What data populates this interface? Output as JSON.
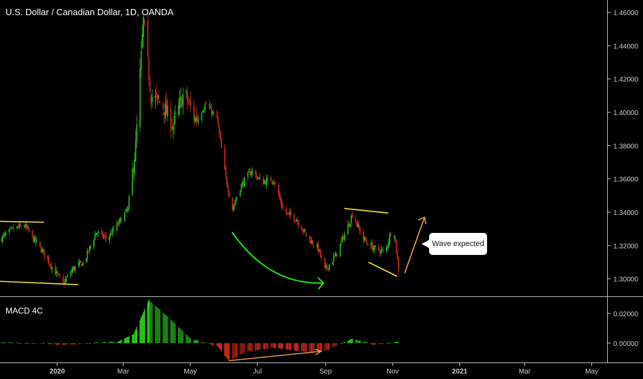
{
  "header": {
    "title": "U.S. Dollar / Canadian Dollar, 1D, OANDA"
  },
  "indicator": {
    "title": "MACD 4C"
  },
  "annotation": {
    "label": "Wave expected"
  },
  "colors": {
    "up": "#26c41a",
    "down": "#d32c1c",
    "trend": "#f2e63a",
    "curve": "#22dd22",
    "arrow": "#f0a040",
    "axis": "#cccccc"
  },
  "chart_data": [
    {
      "type": "candlestick",
      "title": "U.S. Dollar / Canadian Dollar, 1D, OANDA",
      "x_ticks": [
        "2020",
        "Mar",
        "May",
        "Jul",
        "Sep",
        "Nov",
        "2021",
        "Mar",
        "May"
      ],
      "y_ticks": [
        "1.46000",
        "1.44000",
        "1.42000",
        "1.40000",
        "1.38000",
        "1.36000",
        "1.34000",
        "1.32000",
        "1.30000"
      ],
      "ylim": [
        1.2895,
        1.4675
      ],
      "x_range": [
        "2019-11-10",
        "2021-05-15"
      ],
      "close_path": [
        [
          "2019-11-10",
          1.324
        ],
        [
          "2019-11-22",
          1.33
        ],
        [
          "2019-12-02",
          1.332
        ],
        [
          "2019-12-10",
          1.324
        ],
        [
          "2019-12-20",
          1.315
        ],
        [
          "2019-12-28",
          1.306
        ],
        [
          "2020-01-06",
          1.297
        ],
        [
          "2020-01-15",
          1.306
        ],
        [
          "2020-01-25",
          1.31
        ],
        [
          "2020-02-05",
          1.328
        ],
        [
          "2020-02-15",
          1.324
        ],
        [
          "2020-02-25",
          1.333
        ],
        [
          "2020-03-05",
          1.342
        ],
        [
          "2020-03-12",
          1.38
        ],
        [
          "2020-03-19",
          1.455
        ],
        [
          "2020-03-26",
          1.41
        ],
        [
          "2020-04-05",
          1.405
        ],
        [
          "2020-04-15",
          1.392
        ],
        [
          "2020-04-25",
          1.412
        ],
        [
          "2020-05-05",
          1.396
        ],
        [
          "2020-05-15",
          1.405
        ],
        [
          "2020-05-25",
          1.396
        ],
        [
          "2020-06-02",
          1.36
        ],
        [
          "2020-06-08",
          1.342
        ],
        [
          "2020-06-15",
          1.355
        ],
        [
          "2020-06-25",
          1.365
        ],
        [
          "2020-07-05",
          1.358
        ],
        [
          "2020-07-15",
          1.36
        ],
        [
          "2020-07-25",
          1.34
        ],
        [
          "2020-08-05",
          1.336
        ],
        [
          "2020-08-15",
          1.325
        ],
        [
          "2020-08-25",
          1.318
        ],
        [
          "2020-08-31",
          1.305
        ],
        [
          "2020-09-10",
          1.314
        ],
        [
          "2020-09-20",
          1.33
        ],
        [
          "2020-09-25",
          1.339
        ],
        [
          "2020-10-05",
          1.324
        ],
        [
          "2020-10-15",
          1.318
        ],
        [
          "2020-10-25",
          1.316
        ],
        [
          "2020-11-01",
          1.333
        ],
        [
          "2020-11-06",
          1.306
        ]
      ]
    },
    {
      "type": "bar",
      "title": "MACD 4C",
      "y_ticks": [
        "0.02000",
        "0.00000"
      ],
      "ylim": [
        -0.013,
        0.0315
      ],
      "values_path": [
        [
          "2019-11-10",
          0.0005
        ],
        [
          "2019-12-10",
          -0.0002
        ],
        [
          "2020-01-05",
          -0.0012
        ],
        [
          "2020-02-01",
          0.0
        ],
        [
          "2020-02-25",
          0.001
        ],
        [
          "2020-03-10",
          0.006
        ],
        [
          "2020-03-24",
          0.029
        ],
        [
          "2020-04-10",
          0.018
        ],
        [
          "2020-05-01",
          0.003
        ],
        [
          "2020-05-25",
          -0.002
        ],
        [
          "2020-06-05",
          -0.012
        ],
        [
          "2020-06-20",
          -0.006
        ],
        [
          "2020-07-15",
          -0.003
        ],
        [
          "2020-08-15",
          -0.006
        ],
        [
          "2020-09-01",
          -0.005
        ],
        [
          "2020-09-25",
          0.003
        ],
        [
          "2020-10-15",
          -0.001
        ],
        [
          "2020-11-06",
          0.001
        ]
      ]
    }
  ]
}
